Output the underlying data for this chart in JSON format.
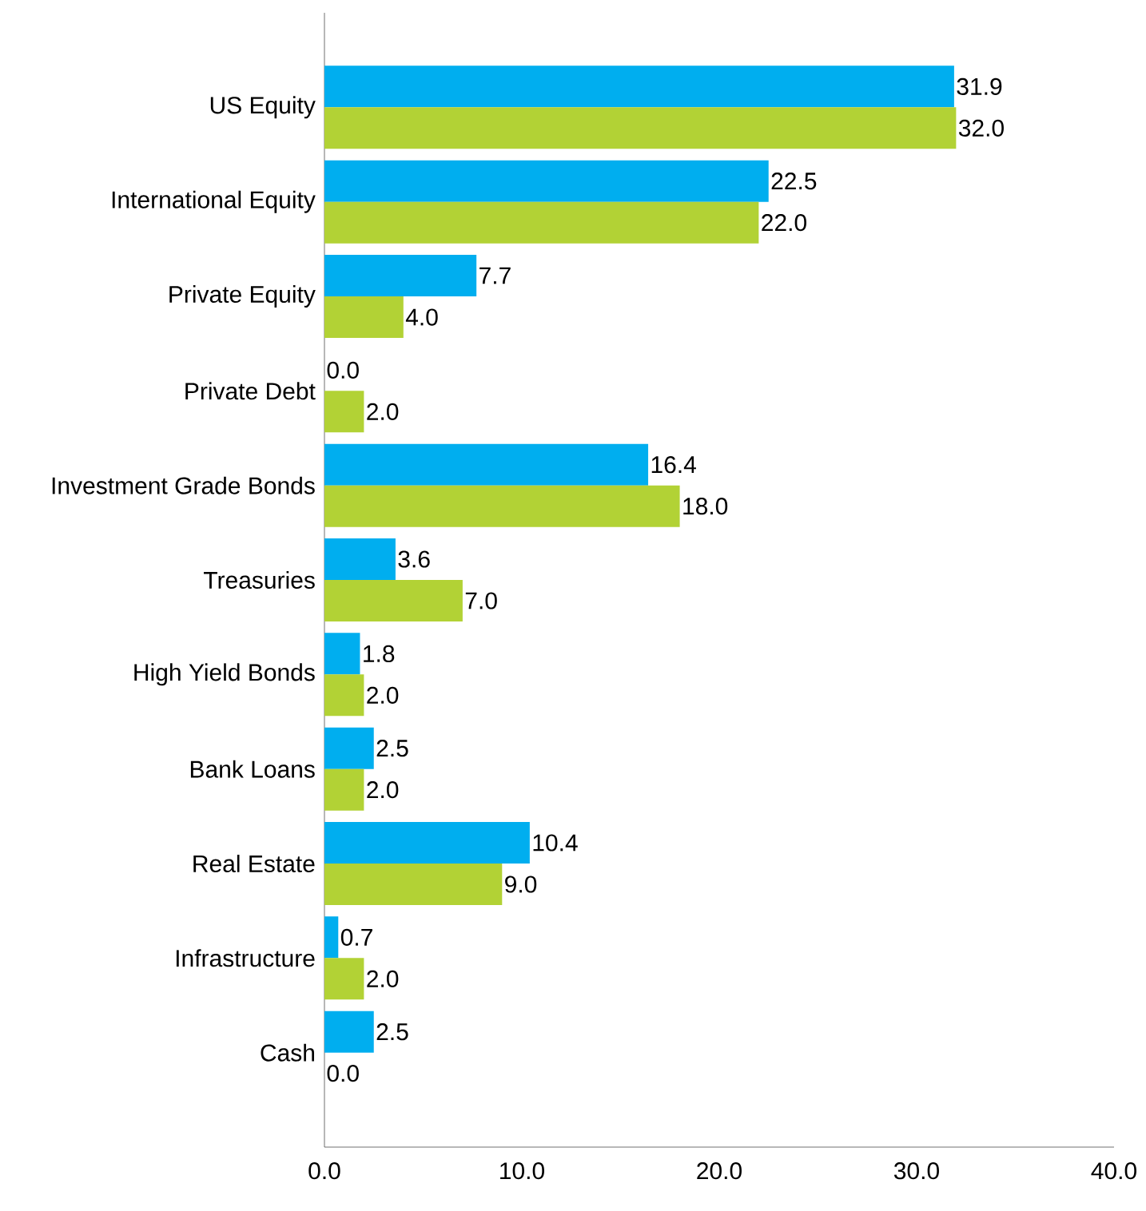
{
  "chart_data": {
    "type": "bar",
    "orientation": "horizontal",
    "categories": [
      "US Equity",
      "International Equity",
      "Private Equity",
      "Private Debt",
      "Investment Grade Bonds",
      "Treasuries",
      "High Yield Bonds",
      "Bank Loans",
      "Real Estate",
      "Infrastructure",
      "Cash"
    ],
    "series": [
      {
        "color": "#00aeef",
        "values": [
          31.9,
          22.5,
          7.7,
          0.0,
          16.4,
          3.6,
          1.8,
          2.5,
          10.4,
          0.7,
          2.5
        ],
        "value_labels": [
          "31.9",
          "22.5",
          "7.7",
          "0.0",
          "16.4",
          "3.6",
          "1.8",
          "2.5",
          "10.4",
          "0.7",
          "2.5"
        ]
      },
      {
        "color": "#b2d235",
        "values": [
          32.0,
          22.0,
          4.0,
          2.0,
          18.0,
          7.0,
          2.0,
          2.0,
          9.0,
          2.0,
          0.0
        ],
        "value_labels": [
          "32.0",
          "22.0",
          "4.0",
          "2.0",
          "18.0",
          "7.0",
          "2.0",
          "2.0",
          "9.0",
          "2.0",
          "0.0"
        ]
      }
    ],
    "xlim": [
      0,
      40
    ],
    "xticks": [
      {
        "value": 0,
        "label": "0.0"
      },
      {
        "value": 10,
        "label": "10.0"
      },
      {
        "value": 20,
        "label": "20.0"
      },
      {
        "value": 30,
        "label": "30.0"
      },
      {
        "value": 40,
        "label": "40.0"
      }
    ],
    "grid": false
  }
}
